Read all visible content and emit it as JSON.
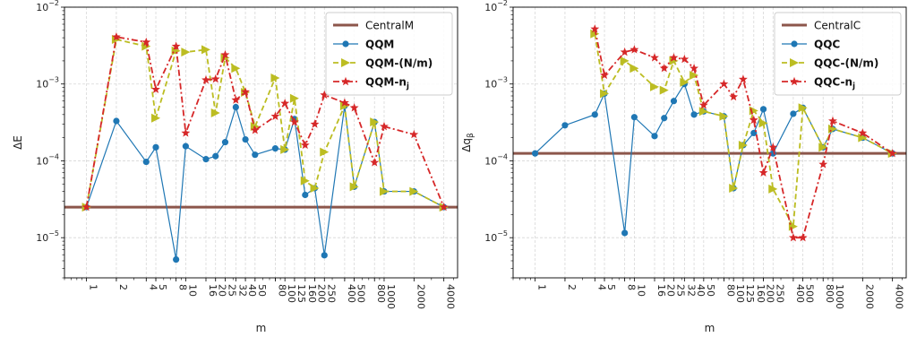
{
  "chart_data": [
    {
      "type": "line",
      "xscale": "log",
      "yscale": "log",
      "xlabel": "m",
      "ylabel": "ΔE",
      "ylim": [
        3e-06,
        0.01
      ],
      "xlim": [
        0.6,
        5500
      ],
      "y_tick_labels": [
        "10^-5",
        "10^-4",
        "10^-3",
        "10^-2"
      ],
      "x_ticks": [
        1,
        2,
        4,
        5,
        8,
        10,
        16,
        20,
        25,
        32,
        40,
        50,
        80,
        100,
        125,
        160,
        200,
        250,
        400,
        500,
        800,
        1000,
        2000,
        4000
      ],
      "x_tick_labels": [
        "1",
        "2",
        "4",
        "5",
        "8",
        "10",
        "16",
        "20",
        "25",
        "32",
        "40",
        "50",
        "80",
        "100",
        "125",
        "160",
        "200",
        "250",
        "400",
        "500",
        "800",
        "1000",
        "2000",
        "4000"
      ],
      "grid": true,
      "legend_position": "top-right",
      "hline": {
        "name": "CentralM",
        "value": 2.5e-05,
        "color": "#8c564b"
      },
      "series": [
        {
          "name": "QQM",
          "color": "#1f77b4",
          "style": "solid",
          "marker": "circle",
          "x": [
            1,
            2,
            4,
            5,
            8,
            10,
            16,
            20,
            25,
            32,
            40,
            50,
            80,
            100,
            125,
            160,
            200,
            250,
            400,
            500,
            800,
            1000,
            2000,
            4000
          ],
          "y": [
            2.5e-05,
            0.00033,
            9.7e-05,
            0.00015,
            5.2e-06,
            0.000155,
            0.000105,
            0.000115,
            0.000175,
            0.0005,
            0.00019,
            0.00012,
            0.000145,
            0.00014,
            0.00035,
            3.6e-05,
            4.4e-05,
            5.9e-06,
            0.00052,
            4.6e-05,
            0.00032,
            4e-05,
            4e-05,
            2.5e-05
          ]
        },
        {
          "name": "QQM-(N/m)",
          "color": "#bcbd22",
          "style": "dashed",
          "marker": "triangle-right",
          "x": [
            1,
            2,
            4,
            5,
            8,
            10,
            16,
            20,
            25,
            32,
            40,
            50,
            80,
            100,
            125,
            160,
            200,
            250,
            400,
            500,
            800,
            1000,
            2000,
            4000
          ],
          "y": [
            2.5e-05,
            0.0038,
            0.0031,
            0.00036,
            0.0027,
            0.0026,
            0.0028,
            0.00042,
            0.0022,
            0.0016,
            0.00078,
            0.00028,
            0.0012,
            0.00014,
            0.00065,
            5.5e-05,
            4.4e-05,
            0.00013,
            0.00052,
            4.6e-05,
            0.00032,
            4e-05,
            4e-05,
            2.5e-05
          ]
        },
        {
          "name": "QQM-n_j",
          "color": "#d62728",
          "style": "dashdot",
          "marker": "star",
          "x": [
            1,
            2,
            4,
            5,
            8,
            10,
            16,
            20,
            25,
            32,
            40,
            50,
            80,
            100,
            125,
            160,
            200,
            250,
            400,
            500,
            800,
            1000,
            2000,
            4000
          ],
          "y": [
            2.5e-05,
            0.0041,
            0.0035,
            0.00085,
            0.0031,
            0.00023,
            0.00113,
            0.00116,
            0.0024,
            0.00062,
            0.00079,
            0.00025,
            0.00038,
            0.00056,
            0.00032,
            0.00016,
            0.0003,
            0.00072,
            0.00057,
            0.00049,
            9.5e-05,
            0.00028,
            0.00022,
            2.5e-05
          ]
        }
      ]
    },
    {
      "type": "line",
      "xscale": "log",
      "yscale": "log",
      "xlabel": "m",
      "ylabel": "Δq_β",
      "ylim": [
        3e-06,
        0.01
      ],
      "xlim": [
        0.6,
        5500
      ],
      "y_tick_labels": [
        "10^-5",
        "10^-4",
        "10^-3",
        "10^-2"
      ],
      "x_ticks": [
        1,
        2,
        4,
        5,
        8,
        10,
        16,
        20,
        25,
        32,
        40,
        50,
        80,
        100,
        125,
        160,
        200,
        250,
        400,
        500,
        800,
        1000,
        2000,
        4000
      ],
      "x_tick_labels": [
        "1",
        "2",
        "4",
        "5",
        "8",
        "10",
        "16",
        "20",
        "25",
        "32",
        "40",
        "50",
        "80",
        "100",
        "125",
        "160",
        "200",
        "250",
        "400",
        "500",
        "800",
        "1000",
        "2000",
        "4000"
      ],
      "grid": true,
      "legend_position": "top-right",
      "hline": {
        "name": "CentralC",
        "value": 0.000125,
        "color": "#8c564b"
      },
      "series": [
        {
          "name": "QQC",
          "color": "#1f77b4",
          "style": "solid",
          "marker": "circle",
          "x": [
            1,
            2,
            4,
            5,
            8,
            10,
            16,
            20,
            25,
            32,
            40,
            50,
            80,
            100,
            125,
            160,
            200,
            250,
            400,
            500,
            800,
            1000,
            2000,
            4000
          ],
          "y": [
            0.000125,
            0.00029,
            0.0004,
            0.00075,
            1.15e-05,
            0.00037,
            0.00021,
            0.00036,
            0.0006,
            0.001,
            0.0004,
            0.00044,
            0.00038,
            4.4e-05,
            0.00016,
            0.00023,
            0.00047,
            0.000125,
            0.00041,
            0.00049,
            0.00015,
            0.00026,
            0.0002,
            0.000125
          ]
        },
        {
          "name": "QQC-(N/m)",
          "color": "#bcbd22",
          "style": "dashed",
          "marker": "triangle-right",
          "x": [
            4,
            5,
            8,
            10,
            16,
            20,
            25,
            32,
            40,
            50,
            80,
            100,
            125,
            160,
            200,
            250,
            400,
            500,
            800,
            1000,
            2000,
            4000
          ],
          "y": [
            0.0045,
            0.00075,
            0.002,
            0.0016,
            0.00092,
            0.00083,
            0.002,
            0.00105,
            0.0013,
            0.00044,
            0.00038,
            4.4e-05,
            0.00016,
            0.00045,
            0.00031,
            4.3e-05,
            1.4e-05,
            0.00049,
            0.00015,
            0.00026,
            0.0002,
            0.000125
          ]
        },
        {
          "name": "QQC-n_j",
          "color": "#d62728",
          "style": "dashdot",
          "marker": "star",
          "x": [
            4,
            5,
            8,
            10,
            16,
            20,
            25,
            32,
            40,
            50,
            80,
            100,
            125,
            160,
            200,
            250,
            400,
            500,
            800,
            1000,
            2000,
            4000
          ],
          "y": [
            0.0052,
            0.0013,
            0.0026,
            0.0028,
            0.0022,
            0.0016,
            0.0022,
            0.0021,
            0.0016,
            0.00053,
            0.001,
            0.00068,
            0.00115,
            0.00034,
            7e-05,
            0.00015,
            1e-05,
            1e-05,
            9e-05,
            0.00033,
            0.00023,
            0.000125
          ]
        }
      ]
    }
  ]
}
